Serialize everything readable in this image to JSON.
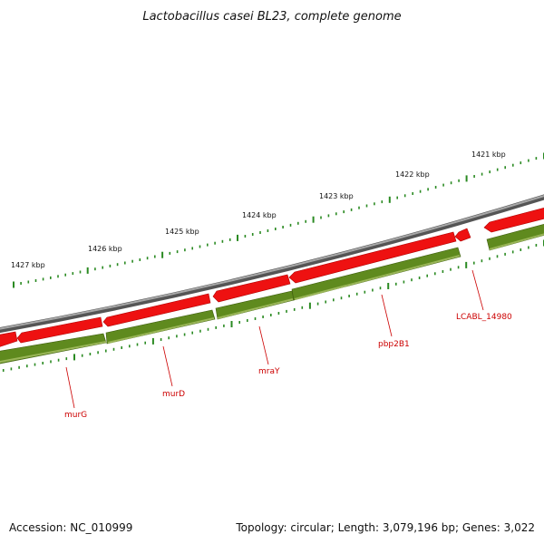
{
  "title": "Lactobacillus casei BL23, complete genome",
  "accession": "Accession: NC_010999",
  "summary": "Topology: circular; Length: 3,079,196 bp; Genes: 3,022",
  "colors": {
    "backbone": "#7a7a7a",
    "forward_gene": "#ee1111",
    "reverse_gene": "#5f8a1e",
    "tick": "#2a8a22",
    "label": "#cc0000"
  },
  "scale_labels": [
    "1427 kbp",
    "1426 kbp",
    "1425 kbp",
    "1424 kbp",
    "1423 kbp",
    "1422 kbp",
    "1421 kbp"
  ],
  "genes": {
    "murG": "murG",
    "murD": "murD",
    "mraY": "mraY",
    "pbp2B1": "pbp2B1",
    "LCABL_14980": "LCABL_14980"
  }
}
